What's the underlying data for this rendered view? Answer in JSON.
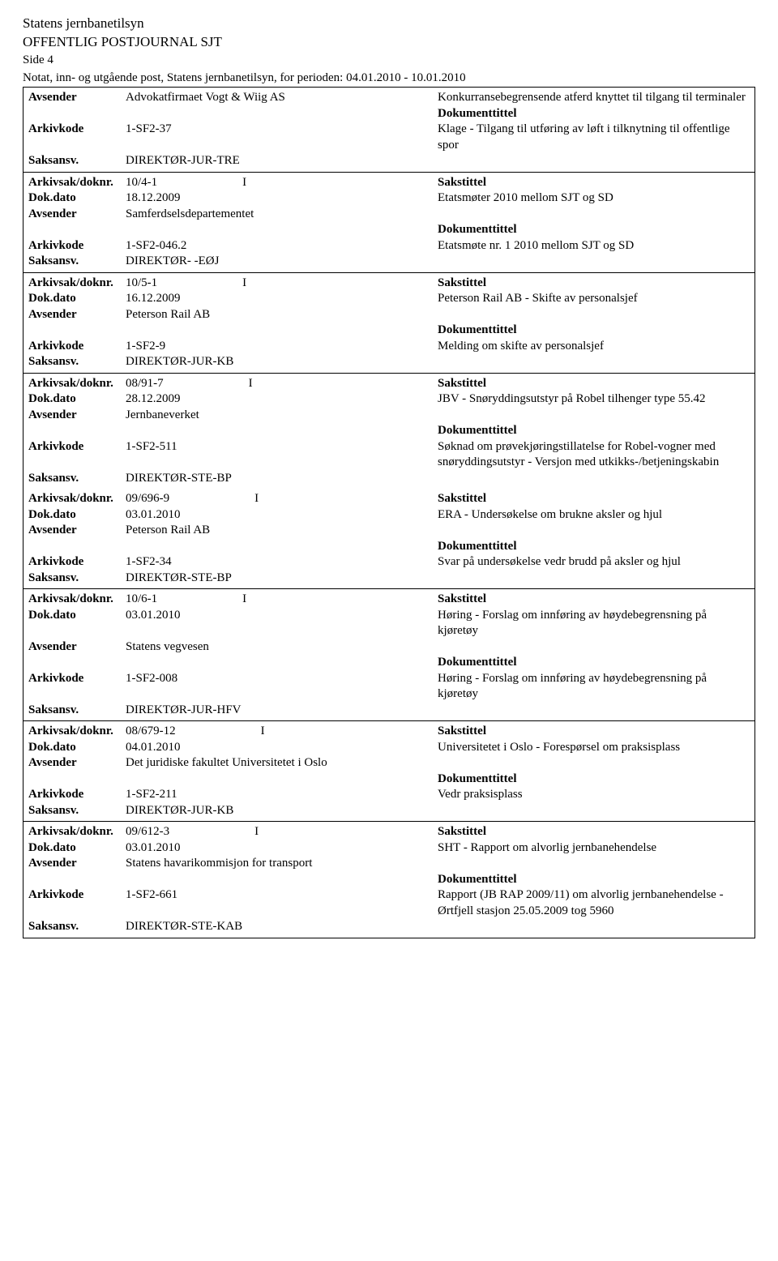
{
  "header": {
    "org": "Statens jernbanetilsyn",
    "journal": "OFFENTLIG POSTJOURNAL SJT",
    "page": "Side 4",
    "notat": "Notat, inn- og utgående post, Statens jernbanetilsyn, for perioden: 04.01.2010 - 10.01.2010"
  },
  "labels": {
    "avsender": "Avsender",
    "arkivkode": "Arkivkode",
    "saksansv": "Saksansv.",
    "arkivsak": "Arkivsak/doknr.",
    "dokdato": "Dok.dato",
    "dokumenttittel": "Dokumenttittel",
    "sakstittel": "Sakstittel"
  },
  "entries": [
    {
      "no_arkivsak": true,
      "avsender": "Advokatfirmaet Vogt & Wiig AS",
      "arkivkode": "1-SF2-37",
      "saksansv": "DIREKTØR-JUR-TRE",
      "sakstittel": "Konkurransebegrensende atferd knyttet til tilgang til terminaler",
      "dokumenttittel": "Klage - Tilgang til utføring av løft i tilknytning til offentlige spor"
    },
    {
      "arkivsak": "10/4-1",
      "ind": "I",
      "dokdato": "18.12.2009",
      "avsender": "Samferdselsdepartementet",
      "arkivkode": "1-SF2-046.2",
      "saksansv": "DIREKTØR- -EØJ",
      "sakstittel": "Etatsmøter 2010 mellom SJT og SD",
      "dokumenttittel": "Etatsmøte nr. 1 2010 mellom SJT og SD"
    },
    {
      "arkivsak": "10/5-1",
      "ind": "I",
      "dokdato": "16.12.2009",
      "avsender": "Peterson Rail AB",
      "arkivkode": "1-SF2-9",
      "saksansv": "DIREKTØR-JUR-KB",
      "sakstittel": "Peterson Rail AB - Skifte av personalsjef",
      "dokumenttittel": "Melding om skifte av personalsjef"
    },
    {
      "arkivsak": "08/91-7",
      "ind": "I",
      "dokdato": "28.12.2009",
      "avsender": "Jernbaneverket",
      "arkivkode": "1-SF2-511",
      "saksansv": "DIREKTØR-STE-BP",
      "sakstittel": "JBV - Snøryddingsutstyr på Robel tilhenger type 55.42",
      "dokumenttittel": "Søknad om prøvekjøringstillatelse for Robel-vogner med snøryddingsutstyr - Versjon med utkikks-/betjeningskabin",
      "no_bottom_border": true
    },
    {
      "arkivsak": "09/696-9",
      "ind": "I",
      "dokdato": "03.01.2010",
      "avsender": "Peterson Rail AB",
      "arkivkode": "1-SF2-34",
      "saksansv": "DIREKTØR-STE-BP",
      "sakstittel": "ERA - Undersøkelse om brukne aksler og hjul",
      "dokumenttittel": "Svar på undersøkelse vedr brudd på aksler og hjul"
    },
    {
      "arkivsak": "10/6-1",
      "ind": "I",
      "dokdato": "03.01.2010",
      "avsender": "Statens vegvesen",
      "arkivkode": "1-SF2-008",
      "saksansv": "DIREKTØR-JUR-HFV",
      "sakstittel": "Høring - Forslag om innføring av høydebegrensning på kjøretøy",
      "dokumenttittel": "Høring - Forslag om innføring av høydebegrensning på kjøretøy"
    },
    {
      "arkivsak": "08/679-12",
      "ind": "I",
      "dokdato": "04.01.2010",
      "avsender": "Det juridiske fakultet Universitetet i Oslo",
      "arkivkode": "1-SF2-211",
      "saksansv": "DIREKTØR-JUR-KB",
      "sakstittel": "Universitetet i Oslo - Forespørsel om praksisplass",
      "dokumenttittel": "Vedr praksisplass"
    },
    {
      "arkivsak": "09/612-3",
      "ind": "I",
      "dokdato": "03.01.2010",
      "avsender": "Statens havarikommisjon for transport",
      "arkivkode": "1-SF2-661",
      "saksansv": "DIREKTØR-STE-KAB",
      "sakstittel": "SHT - Rapport om alvorlig jernbanehendelse",
      "dokumenttittel": "Rapport (JB RAP 2009/11) om alvorlig jernbanehendelse - Ørtfjell stasjon 25.05.2009 tog 5960"
    }
  ]
}
